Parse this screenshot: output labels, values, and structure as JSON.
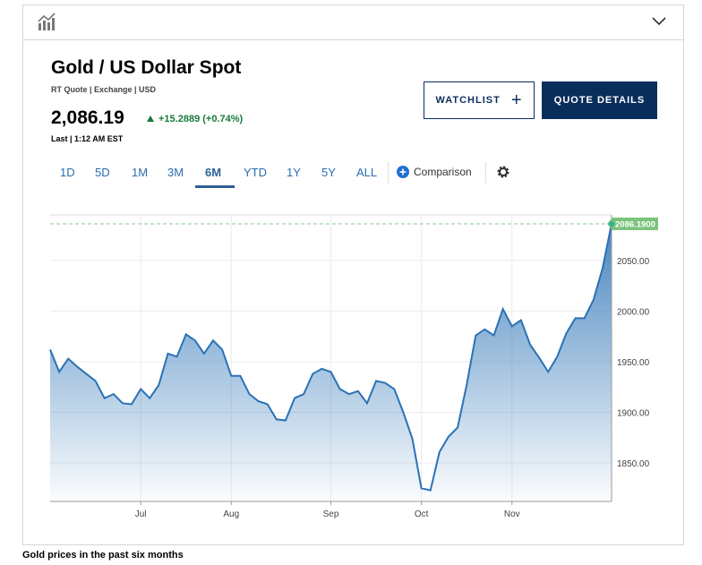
{
  "header": {
    "title": "Gold / US Dollar Spot",
    "subtitle": "RT Quote | Exchange | USD",
    "price": "2,086.19",
    "change": "+15.2889 (+0.74%)",
    "last_time": "Last | 1:12 AM EST"
  },
  "buttons": [
    "WATCHLIST",
    "QUOTE DETAILS"
  ],
  "tabs": [
    "1D",
    "5D",
    "1M",
    "3M",
    "6M",
    "YTD",
    "1Y",
    "5Y",
    "ALL"
  ],
  "active_tab": "6M",
  "comparison": "Comparison",
  "caption": "Gold prices in the past six months",
  "chart_data": {
    "type": "area",
    "color": "#2a72b5",
    "grid": true,
    "categories": [
      null,
      null,
      null,
      null,
      null,
      null,
      null,
      null,
      null,
      null,
      "Jul",
      null,
      null,
      null,
      null,
      null,
      null,
      null,
      null,
      null,
      "Aug",
      null,
      null,
      null,
      null,
      null,
      null,
      null,
      null,
      null,
      null,
      "Sep",
      null,
      null,
      null,
      null,
      null,
      null,
      null,
      null,
      null,
      "Oct",
      null,
      null,
      null,
      null,
      null,
      null,
      null,
      null,
      null,
      "Nov",
      null,
      null,
      null,
      null,
      null,
      null,
      null,
      null,
      null,
      null,
      null
    ],
    "values": [
      1962,
      1940,
      1953,
      1945,
      1938,
      1931,
      1914,
      1918,
      1909,
      1908,
      1923,
      1914,
      1927,
      1958,
      1955,
      1977,
      1971,
      1958,
      1971,
      1962,
      1936,
      1936,
      1918,
      1911,
      1908,
      1893,
      1892,
      1914,
      1918,
      1938,
      1943,
      1940,
      1923,
      1918,
      1921,
      1909,
      1931,
      1929,
      1923,
      1900,
      1874,
      1825,
      1823,
      1861,
      1876,
      1885,
      1927,
      1976,
      1982,
      1976,
      2002,
      1985,
      1991,
      1967,
      1954,
      1940,
      1955,
      1978,
      1993,
      1993,
      2011,
      2042,
      2086.19
    ],
    "value_labels": [
      null,
      null,
      null,
      null,
      null,
      null,
      null,
      null,
      null,
      null,
      null,
      null,
      null,
      null,
      null,
      null,
      null,
      null,
      null,
      null,
      null,
      null,
      null,
      null,
      null,
      null,
      null,
      null,
      null,
      null,
      null,
      null,
      null,
      null,
      null,
      null,
      null,
      null,
      null,
      null,
      null,
      null,
      null,
      null,
      null,
      null,
      null,
      null,
      null,
      null,
      null,
      null,
      null,
      null,
      null,
      null,
      null,
      null,
      null,
      null,
      null,
      null,
      "2086.1900"
    ],
    "ylim": [
      1812,
      2095
    ],
    "yticks": [
      {
        "value": 1850,
        "label": "1850.00"
      },
      {
        "value": 1900,
        "label": "1900.00"
      },
      {
        "value": 1950,
        "label": "1950.00"
      },
      {
        "value": 2000,
        "label": "2000.00"
      },
      {
        "value": 2050,
        "label": "2050.00"
      }
    ]
  }
}
